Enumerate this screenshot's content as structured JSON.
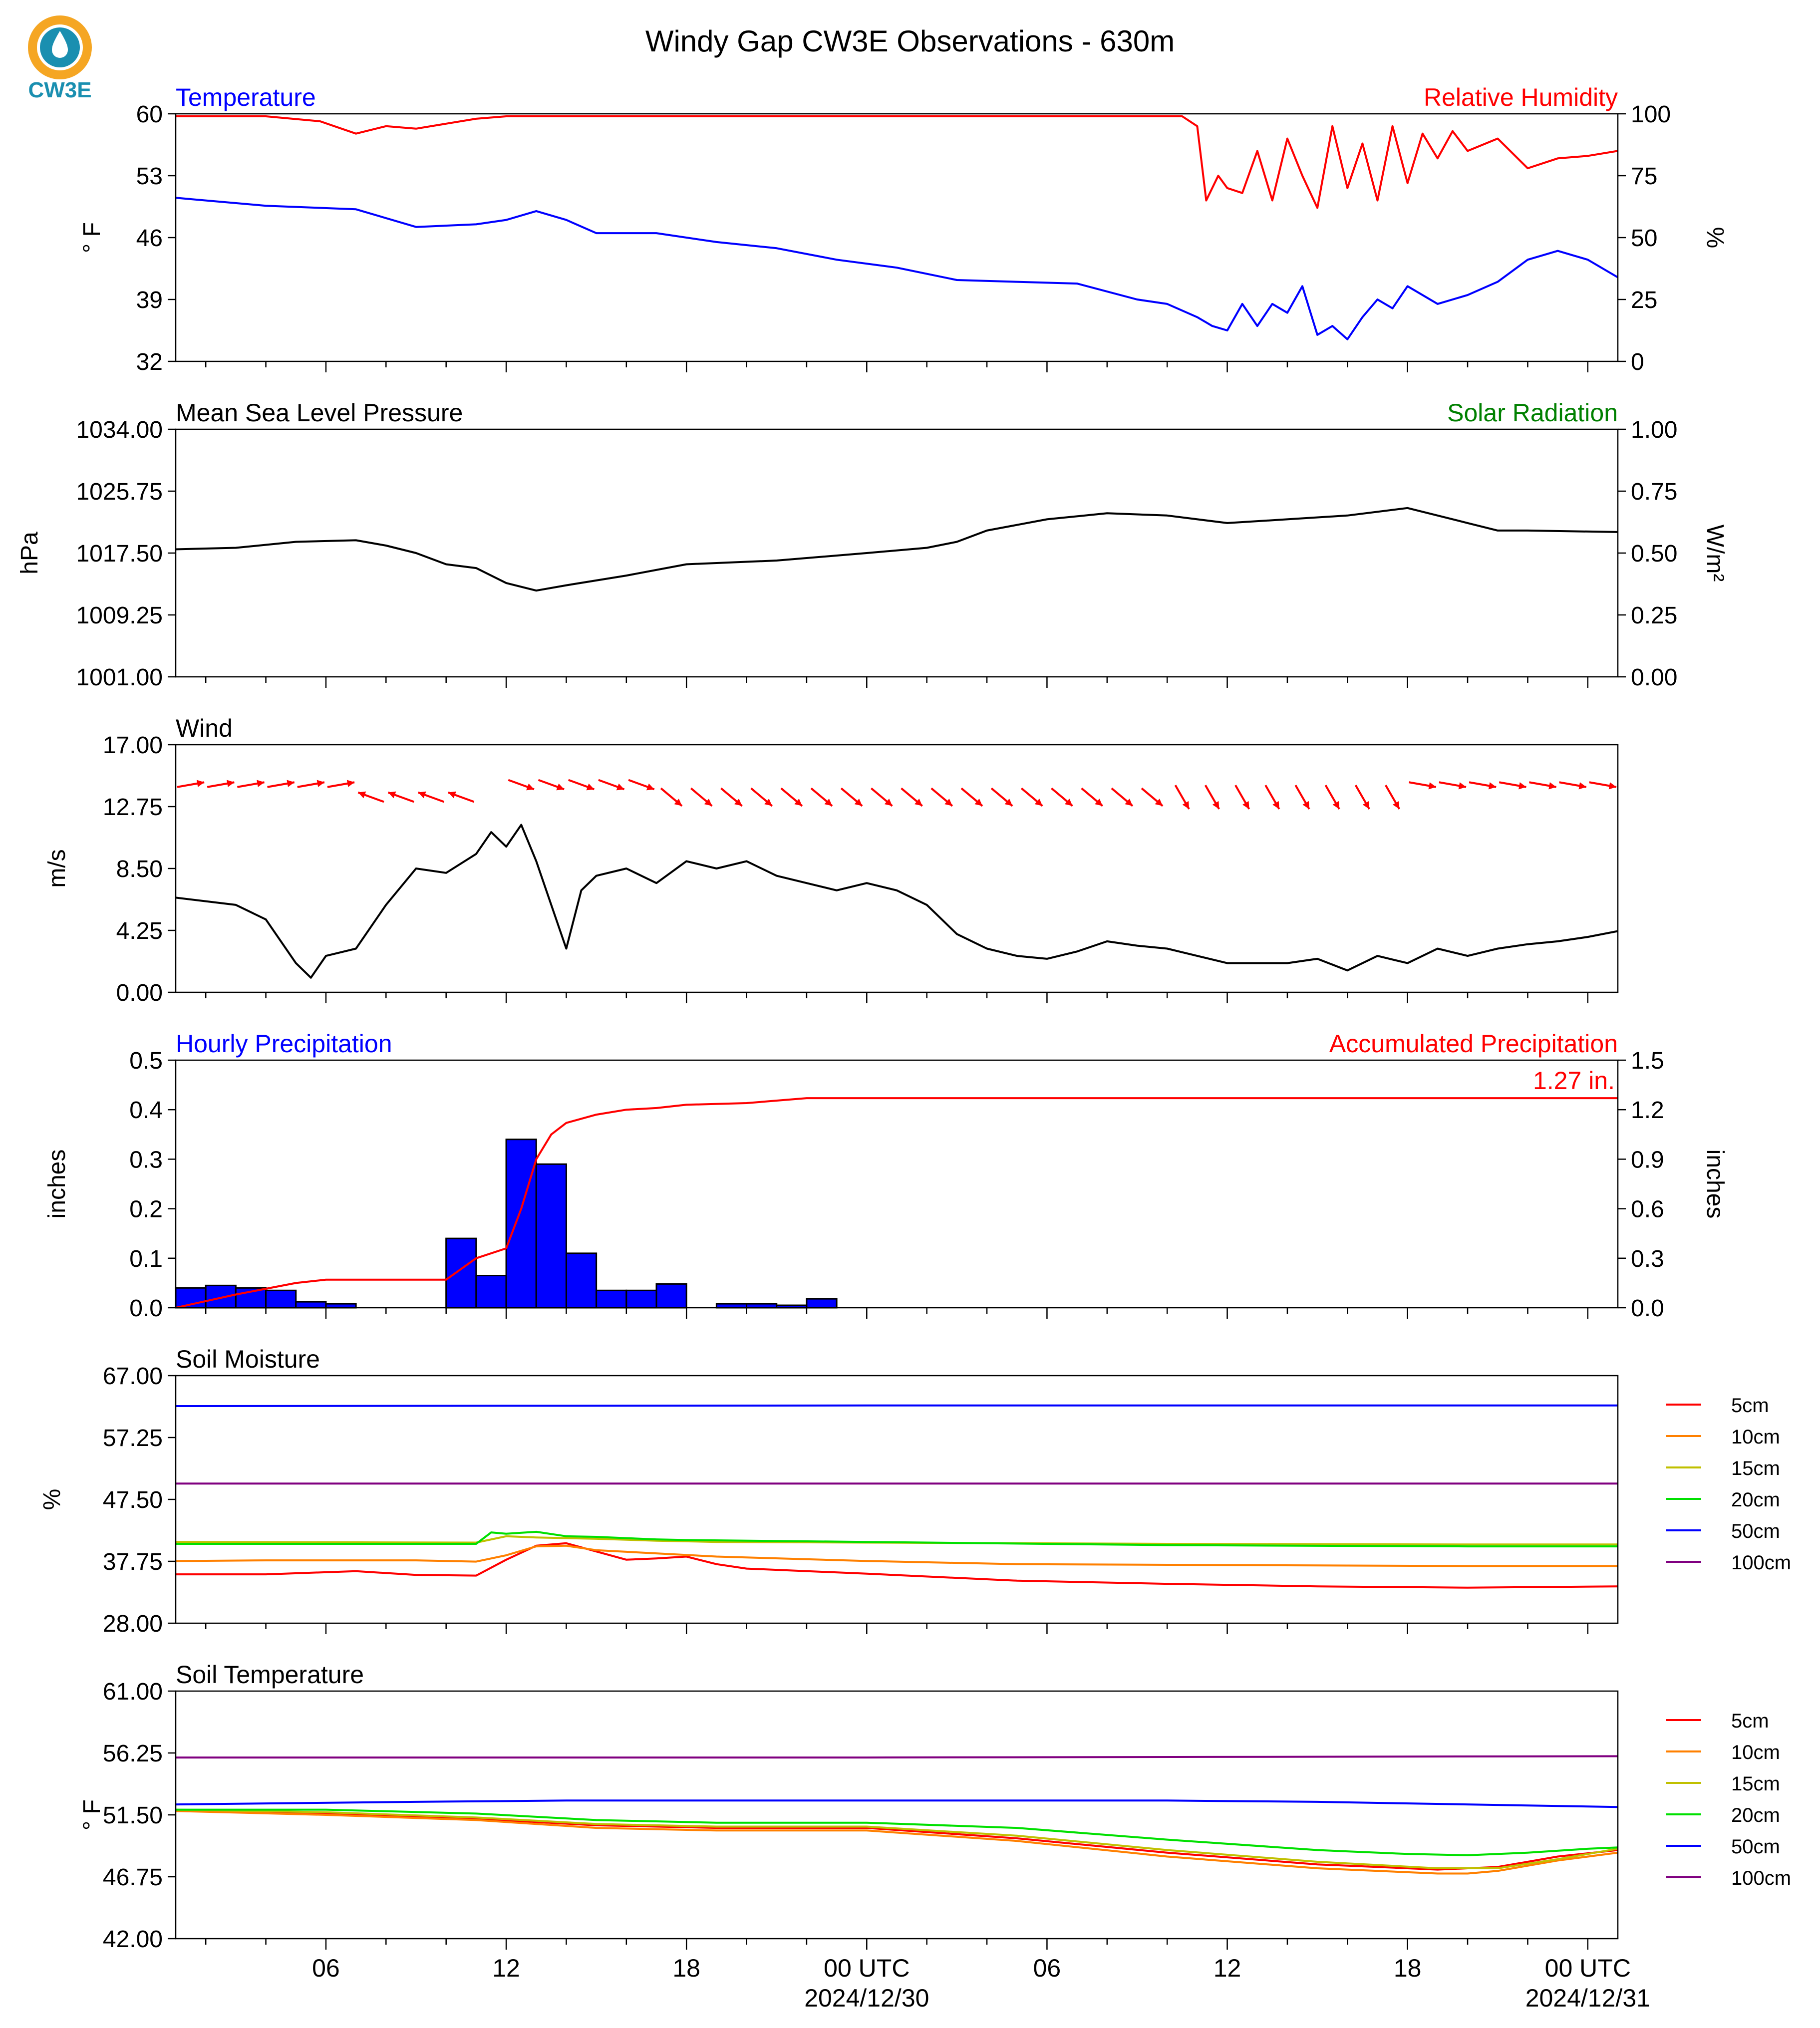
{
  "page": {
    "title": "Windy Gap CW3E Observations - 630m",
    "logo_text": "CW3E"
  },
  "colors": {
    "red": "#ff0000",
    "blue": "#0000ff",
    "black": "#000000",
    "green": "#008000",
    "bar_fill": "#0000ff",
    "logo_teal": "#1a8fb0",
    "logo_orange": "#f5a623"
  },
  "x_axis": {
    "range_hours": [
      -23.0,
      25.0
    ],
    "tick_labels": [
      {
        "h": -18,
        "label": "06"
      },
      {
        "h": -12,
        "label": "12"
      },
      {
        "h": -6,
        "label": "18"
      },
      {
        "h": 0,
        "label": "00 UTC",
        "sub": "2024/12/30"
      },
      {
        "h": 6,
        "label": "06"
      },
      {
        "h": 12,
        "label": "12"
      },
      {
        "h": 18,
        "label": "18"
      },
      {
        "h": 24,
        "label": "00 UTC",
        "sub": "2024/12/31"
      }
    ]
  },
  "chart_data": [
    {
      "id": "temp_rh",
      "type": "line",
      "left_title": "Temperature",
      "right_title": "Relative Humidity",
      "ylabel": "° F",
      "y2label": "%",
      "ylim": [
        32,
        60
      ],
      "y2lim": [
        0,
        100
      ],
      "yticks": [
        "60",
        "53",
        "46",
        "39",
        "32"
      ],
      "y2ticks": [
        "100",
        "75",
        "50",
        "25",
        "0"
      ],
      "series": [
        {
          "name": "Temperature",
          "axis": "left",
          "color": "#0000ff",
          "x": [
            -23,
            -20,
            -17,
            -15,
            -13,
            -12,
            -11,
            -10,
            -9,
            -7,
            -5,
            -3,
            -1,
            1,
            3,
            5,
            7,
            9,
            10,
            11,
            11.5,
            12,
            12.5,
            13,
            13.5,
            14,
            14.5,
            15,
            15.5,
            16,
            16.5,
            17,
            17.5,
            18,
            19,
            20,
            21,
            22,
            23,
            24,
            25
          ],
          "y": [
            50.5,
            49.6,
            49.2,
            47.2,
            47.5,
            48,
            49,
            48,
            46.5,
            46.5,
            45.5,
            44.8,
            43.5,
            42.6,
            41.2,
            41,
            40.8,
            39,
            38.5,
            37,
            36,
            35.5,
            38.5,
            36,
            38.5,
            37.5,
            40.5,
            35,
            36,
            34.5,
            37,
            39,
            38,
            40.5,
            38.5,
            39.5,
            41,
            43.5,
            44.5,
            43.5,
            41.5
          ]
        },
        {
          "name": "Relative Humidity",
          "axis": "right",
          "color": "#ff0000",
          "x": [
            -23,
            -20,
            -18.2,
            -17,
            -16,
            -15,
            -14,
            -13,
            -12,
            -10,
            -6,
            -2,
            0,
            2,
            6,
            10,
            10.5,
            11,
            11.3,
            11.7,
            12,
            12.5,
            13,
            13.5,
            14,
            14.5,
            15,
            15.5,
            16,
            16.5,
            17,
            17.5,
            18,
            18.5,
            19,
            19.5,
            20,
            21,
            22,
            23,
            24,
            25
          ],
          "y": [
            99,
            99,
            97,
            92,
            95,
            94,
            96,
            98,
            99,
            99,
            99,
            99,
            99,
            99,
            99,
            99,
            99,
            95,
            65,
            75,
            70,
            68,
            85,
            65,
            90,
            75,
            62,
            95,
            70,
            88,
            65,
            95,
            72,
            92,
            82,
            93,
            85,
            90,
            78,
            82,
            83,
            85
          ]
        }
      ]
    },
    {
      "id": "pressure",
      "type": "line",
      "left_title": "Mean Sea Level Pressure",
      "right_title": "Solar Radiation",
      "ylabel": "hPa",
      "y2label": "W/m²",
      "ylim": [
        1001.0,
        1034.0
      ],
      "y2lim": [
        0.0,
        1.0
      ],
      "yticks": [
        "1034.00",
        "1025.75",
        "1017.50",
        "1009.25",
        "1001.00"
      ],
      "y2ticks": [
        "1.00",
        "0.75",
        "0.50",
        "0.25",
        "0.00"
      ],
      "series": [
        {
          "name": "Mean Sea Level Pressure",
          "axis": "left",
          "color": "#000000",
          "x": [
            -23,
            -21,
            -19,
            -17,
            -16,
            -15,
            -14,
            -13,
            -12,
            -11,
            -10,
            -8,
            -6,
            -3,
            0,
            2,
            3,
            4,
            6,
            8,
            10,
            12,
            14,
            16,
            18,
            19,
            20,
            21,
            22,
            25
          ],
          "y": [
            1018,
            1018.2,
            1019,
            1019.2,
            1018.5,
            1017.5,
            1016,
            1015.5,
            1013.5,
            1012.5,
            1013.2,
            1014.5,
            1016,
            1016.5,
            1017.5,
            1018.2,
            1019,
            1020.5,
            1022,
            1022.8,
            1022.5,
            1021.5,
            1022,
            1022.5,
            1023.5,
            1022.5,
            1021.5,
            1020.5,
            1020.5,
            1020.3
          ]
        }
      ]
    },
    {
      "id": "wind",
      "type": "line",
      "left_title": "Wind",
      "ylabel": "m/s",
      "ylim": [
        0.0,
        17.0
      ],
      "yticks": [
        "17.00",
        "12.75",
        "8.50",
        "4.25",
        "0.00"
      ],
      "series": [
        {
          "name": "Wind",
          "axis": "left",
          "color": "#000000",
          "x": [
            -23,
            -21,
            -20,
            -19,
            -18.5,
            -18,
            -17,
            -16,
            -15,
            -14,
            -13,
            -12.5,
            -12,
            -11.5,
            -11,
            -10.5,
            -10,
            -9.5,
            -9,
            -8,
            -7,
            -6,
            -5,
            -4,
            -3,
            -2,
            -1,
            0,
            1,
            2,
            2.5,
            3,
            4,
            5,
            6,
            7,
            8,
            9,
            10,
            11,
            12,
            13,
            14,
            15,
            16,
            17,
            18,
            19,
            20,
            21,
            22,
            23,
            24,
            25
          ],
          "y": [
            6.5,
            6,
            5,
            2,
            1,
            2.5,
            3,
            6,
            8.5,
            8.2,
            9.5,
            11,
            10,
            11.5,
            9,
            6,
            3,
            7,
            8,
            8.5,
            7.5,
            9,
            8.5,
            9,
            8,
            7.5,
            7,
            7.5,
            7,
            6,
            5,
            4,
            3,
            2.5,
            2.3,
            2.8,
            3.5,
            3.2,
            3,
            2.5,
            2,
            2,
            2,
            2.3,
            1.5,
            2.5,
            2,
            3,
            2.5,
            3,
            3.3,
            3.5,
            3.8,
            4.2
          ]
        }
      ],
      "arrows_color": "#ff0000"
    },
    {
      "id": "precip",
      "type": "bar",
      "left_title": "Hourly Precipitation",
      "right_title": "Accumulated Precipitation",
      "annotation": "1.27 in.",
      "ylabel": "inches",
      "y2label": "inches",
      "ylim": [
        0.0,
        0.5
      ],
      "y2lim": [
        0.0,
        1.5
      ],
      "yticks": [
        "0.5",
        "0.4",
        "0.3",
        "0.2",
        "0.1",
        "0.0"
      ],
      "y2ticks": [
        "1.5",
        "1.2",
        "0.9",
        "0.6",
        "0.3",
        "0.0"
      ],
      "bars": {
        "name": "Hourly Precipitation",
        "color": "#0000ff",
        "x_start": [
          -23,
          -22,
          -21,
          -20,
          -19,
          -18,
          -14,
          -13,
          -12,
          -11,
          -10,
          -9,
          -8,
          -7,
          -5,
          -4,
          -3,
          -2
        ],
        "values": [
          0.04,
          0.045,
          0.04,
          0.035,
          0.012,
          0.008,
          0.14,
          0.065,
          0.34,
          0.29,
          0.11,
          0.035,
          0.035,
          0.048,
          0.008,
          0.008,
          0.005,
          0.018
        ]
      },
      "series": [
        {
          "name": "Accumulated Precipitation",
          "axis": "right",
          "color": "#ff0000",
          "x": [
            -23,
            -21,
            -19,
            -18,
            -17,
            -14,
            -13,
            -12,
            -11.5,
            -11,
            -10.5,
            -10,
            -9,
            -8,
            -7,
            -6,
            -4,
            -2,
            0,
            4,
            8,
            12,
            16,
            20,
            25
          ],
          "y": [
            0,
            0.08,
            0.15,
            0.17,
            0.17,
            0.17,
            0.3,
            0.36,
            0.6,
            0.9,
            1.05,
            1.12,
            1.17,
            1.2,
            1.21,
            1.23,
            1.24,
            1.27,
            1.27,
            1.27,
            1.27,
            1.27,
            1.27,
            1.27,
            1.27
          ]
        }
      ]
    },
    {
      "id": "soil_moisture",
      "type": "line",
      "left_title": "Soil Moisture",
      "ylabel": "%",
      "ylim": [
        28.0,
        67.0
      ],
      "yticks": [
        "67.00",
        "57.25",
        "47.50",
        "37.75",
        "28.00"
      ],
      "legend": "right",
      "series": [
        {
          "name": "5cm",
          "color": "#ff0000",
          "x": [
            -23,
            -20,
            -17,
            -15,
            -13,
            -12,
            -11,
            -10,
            -9,
            -8,
            -7,
            -6,
            -5,
            -4,
            0,
            5,
            10,
            15,
            20,
            25
          ],
          "y": [
            35.7,
            35.7,
            36.2,
            35.6,
            35.5,
            38,
            40.2,
            40.6,
            39.3,
            38,
            38.2,
            38.5,
            37.3,
            36.6,
            35.8,
            34.7,
            34.2,
            33.8,
            33.6,
            33.8
          ]
        },
        {
          "name": "10cm",
          "color": "#ff8000",
          "x": [
            -23,
            -20,
            -15,
            -13,
            -12,
            -11,
            -10,
            -9,
            -7,
            -5,
            0,
            5,
            10,
            15,
            20,
            25
          ],
          "y": [
            37.8,
            37.9,
            37.9,
            37.7,
            38.7,
            40.1,
            40.2,
            39.5,
            39,
            38.5,
            37.8,
            37.3,
            37.2,
            37.1,
            37,
            37
          ]
        },
        {
          "name": "15cm",
          "color": "#c0c000",
          "x": [
            -23,
            -13,
            -12,
            -11,
            -9,
            -7,
            -5,
            0,
            10,
            20,
            25
          ],
          "y": [
            40.8,
            40.7,
            41.7,
            41.5,
            41.3,
            41,
            40.8,
            40.7,
            40.5,
            40.4,
            40.4
          ]
        },
        {
          "name": "20cm",
          "color": "#00e000",
          "x": [
            -23,
            -13,
            -12.5,
            -12,
            -11,
            -10,
            -9,
            -8,
            -7,
            -6,
            0,
            10,
            20,
            25
          ],
          "y": [
            40.5,
            40.5,
            42.3,
            42.1,
            42.4,
            41.7,
            41.6,
            41.4,
            41.2,
            41.1,
            40.8,
            40.3,
            40.1,
            40.1
          ]
        },
        {
          "name": "50cm",
          "color": "#0000ff",
          "x": [
            -23,
            0,
            25
          ],
          "y": [
            62.2,
            62.3,
            62.3
          ]
        },
        {
          "name": "100cm",
          "color": "#800080",
          "x": [
            -23,
            0,
            25
          ],
          "y": [
            50.0,
            50.0,
            50.0
          ]
        }
      ]
    },
    {
      "id": "soil_temp",
      "type": "line",
      "left_title": "Soil Temperature",
      "ylabel": "° F",
      "ylim": [
        42.0,
        61.0
      ],
      "yticks": [
        "61.00",
        "56.25",
        "51.50",
        "46.75",
        "42.00"
      ],
      "legend": "right",
      "series": [
        {
          "name": "5cm",
          "color": "#ff0000",
          "x": [
            -23,
            -18,
            -13,
            -9,
            -5,
            0,
            5,
            10,
            15,
            19,
            21,
            23,
            25
          ],
          "y": [
            51.8,
            51.6,
            51.2,
            50.7,
            50.5,
            50.5,
            49.7,
            48.6,
            47.7,
            47.3,
            47.5,
            48.3,
            48.8
          ]
        },
        {
          "name": "10cm",
          "color": "#ff8000",
          "x": [
            -23,
            -18,
            -13,
            -9,
            -5,
            0,
            5,
            10,
            15,
            19,
            20,
            21,
            23,
            25
          ],
          "y": [
            51.8,
            51.5,
            51.1,
            50.5,
            50.3,
            50.3,
            49.5,
            48.3,
            47.4,
            47.0,
            47.0,
            47.2,
            48.0,
            48.6
          ]
        },
        {
          "name": "15cm",
          "color": "#c0c000",
          "x": [
            -23,
            -18,
            -13,
            -9,
            -5,
            0,
            5,
            10,
            15,
            19,
            21,
            23,
            25
          ],
          "y": [
            51.9,
            51.7,
            51.3,
            50.8,
            50.6,
            50.6,
            49.9,
            48.8,
            47.9,
            47.4,
            47.4,
            48.1,
            48.9
          ]
        },
        {
          "name": "20cm",
          "color": "#00e000",
          "x": [
            -23,
            -18,
            -13,
            -9,
            -5,
            0,
            5,
            10,
            15,
            18,
            20,
            22,
            24,
            25
          ],
          "y": [
            51.9,
            51.9,
            51.6,
            51.1,
            50.9,
            50.9,
            50.5,
            49.6,
            48.8,
            48.5,
            48.4,
            48.6,
            48.9,
            49.0
          ]
        },
        {
          "name": "50cm",
          "color": "#0000ff",
          "x": [
            -23,
            -15,
            -10,
            0,
            10,
            15,
            20,
            25
          ],
          "y": [
            52.3,
            52.5,
            52.6,
            52.6,
            52.6,
            52.5,
            52.3,
            52.1
          ]
        },
        {
          "name": "100cm",
          "color": "#800080",
          "x": [
            -23,
            0,
            25
          ],
          "y": [
            55.9,
            55.9,
            56.0
          ]
        }
      ]
    }
  ]
}
